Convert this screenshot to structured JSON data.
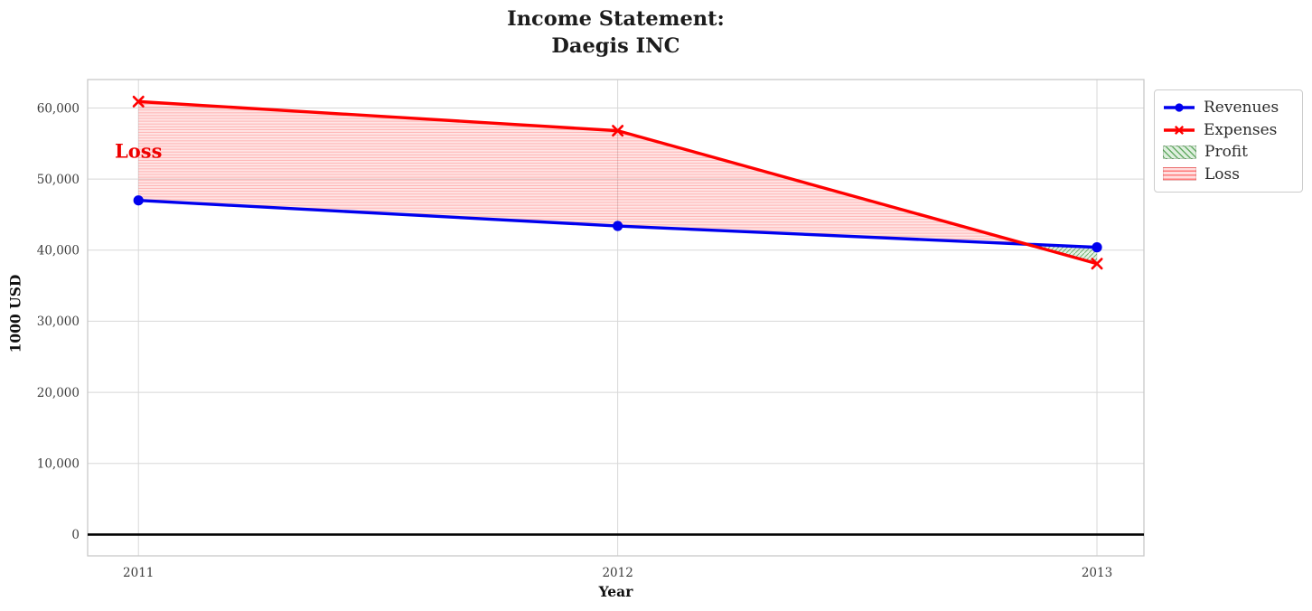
{
  "header": {
    "title_line1": "Income Statement:",
    "title_line2": "Daegis INC"
  },
  "chart_data": {
    "type": "line",
    "title": "Income Statement: Daegis INC",
    "xlabel": "Year",
    "ylabel": "1000 USD",
    "x": [
      2011,
      2012,
      2013
    ],
    "xtick_labels": [
      "2011",
      "2012",
      "2013"
    ],
    "series": [
      {
        "name": "Revenues",
        "color": "#0000ee",
        "marker": "circle",
        "values": [
          47000,
          43400,
          40400
        ]
      },
      {
        "name": "Expenses",
        "color": "#ff0000",
        "marker": "x",
        "values": [
          60900,
          56800,
          38100
        ]
      }
    ],
    "fill_between": [
      {
        "label": "Profit",
        "where": "revenues > expenses",
        "color": "#008000",
        "hatch": "diagonal"
      },
      {
        "label": "Loss",
        "where": "expenses > revenues",
        "color": "#ff0000",
        "hatch": "horizontal"
      }
    ],
    "yticks": [
      0,
      10000,
      20000,
      30000,
      40000,
      50000,
      60000
    ],
    "ytick_labels": [
      "0",
      "10,000",
      "20,000",
      "30,000",
      "40,000",
      "50,000",
      "60,000"
    ],
    "ylim": [
      -3000,
      64000
    ],
    "xlim": [
      2010.894,
      2013.098
    ],
    "grid": true,
    "zero_line": 0,
    "legend_position": "outside upper right",
    "annotations": [
      {
        "text": "Loss",
        "x": 2011,
        "y": 54000,
        "color": "#ee0000"
      }
    ]
  },
  "legend": {
    "items": [
      {
        "label": "Revenues",
        "swatch": "line-circle",
        "color": "#0000ee"
      },
      {
        "label": "Expenses",
        "swatch": "line-x",
        "color": "#ff0000"
      },
      {
        "label": "Profit",
        "swatch": "hatch-diagonal",
        "color": "#008000"
      },
      {
        "label": "Loss",
        "swatch": "hatch-horizontal",
        "color": "#ff0000"
      }
    ]
  }
}
